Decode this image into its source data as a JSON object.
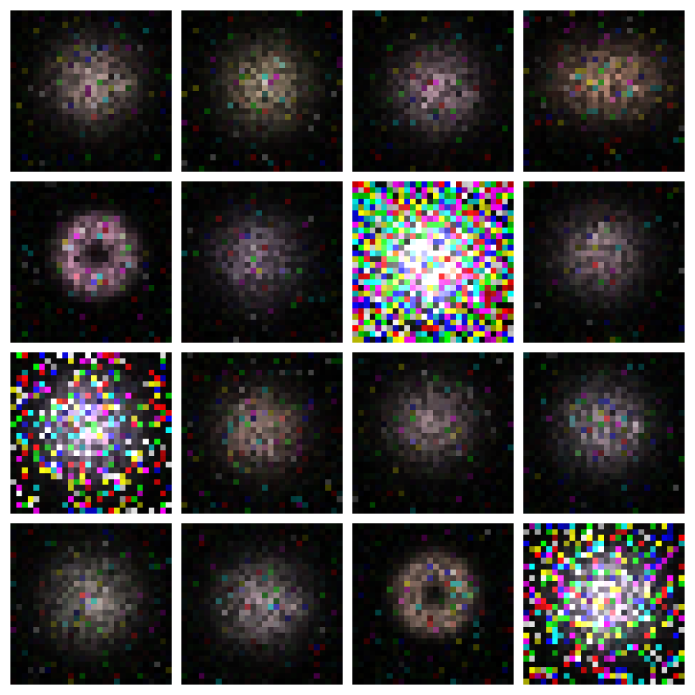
{
  "figure": {
    "type": "generated-sample-grid",
    "rows": 4,
    "columns": 4,
    "tile_resolution": 28,
    "background_color": "#000000",
    "gutter_color": "#ffffff",
    "samples": [
      {
        "index": 0,
        "shape": "blob-lobed",
        "brightness": 0.62,
        "noise": 0.06,
        "tint": "#d6b4b0"
      },
      {
        "index": 1,
        "shape": "blob",
        "brightness": 0.6,
        "noise": 0.07,
        "tint": "#d2b89a"
      },
      {
        "index": 2,
        "shape": "blob-lobed",
        "brightness": 0.6,
        "noise": 0.05,
        "tint": "#d8b0c0"
      },
      {
        "index": 3,
        "shape": "cross-spread",
        "brightness": 0.62,
        "noise": 0.1,
        "tint": "#e0a890"
      },
      {
        "index": 4,
        "shape": "ring",
        "brightness": 0.66,
        "noise": 0.06,
        "tint": "#d49ab8"
      },
      {
        "index": 5,
        "shape": "blob",
        "brightness": 0.52,
        "noise": 0.06,
        "tint": "#c8a8c8"
      },
      {
        "index": 6,
        "shape": "bright-blob",
        "brightness": 1.0,
        "noise": 0.9,
        "tint": "#ffffff"
      },
      {
        "index": 7,
        "shape": "blob",
        "brightness": 0.55,
        "noise": 0.05,
        "tint": "#cdaab8"
      },
      {
        "index": 8,
        "shape": "bright-blob",
        "brightness": 0.85,
        "noise": 0.35,
        "tint": "#f0d0ff"
      },
      {
        "index": 9,
        "shape": "blob",
        "brightness": 0.56,
        "noise": 0.12,
        "tint": "#d0a8a0"
      },
      {
        "index": 10,
        "shape": "blob",
        "brightness": 0.55,
        "noise": 0.06,
        "tint": "#c8a8b0"
      },
      {
        "index": 11,
        "shape": "blob-lobed",
        "brightness": 0.6,
        "noise": 0.05,
        "tint": "#d8c0d0"
      },
      {
        "index": 12,
        "shape": "blob",
        "brightness": 0.6,
        "noise": 0.08,
        "tint": "#d8c8c0"
      },
      {
        "index": 13,
        "shape": "blob-lobed",
        "brightness": 0.6,
        "noise": 0.06,
        "tint": "#d8c0c8"
      },
      {
        "index": 14,
        "shape": "ring-lobed",
        "brightness": 0.55,
        "noise": 0.06,
        "tint": "#d8b0a0"
      },
      {
        "index": 15,
        "shape": "bright-blob",
        "brightness": 0.9,
        "noise": 0.45,
        "tint": "#f4e0ff"
      }
    ]
  }
}
